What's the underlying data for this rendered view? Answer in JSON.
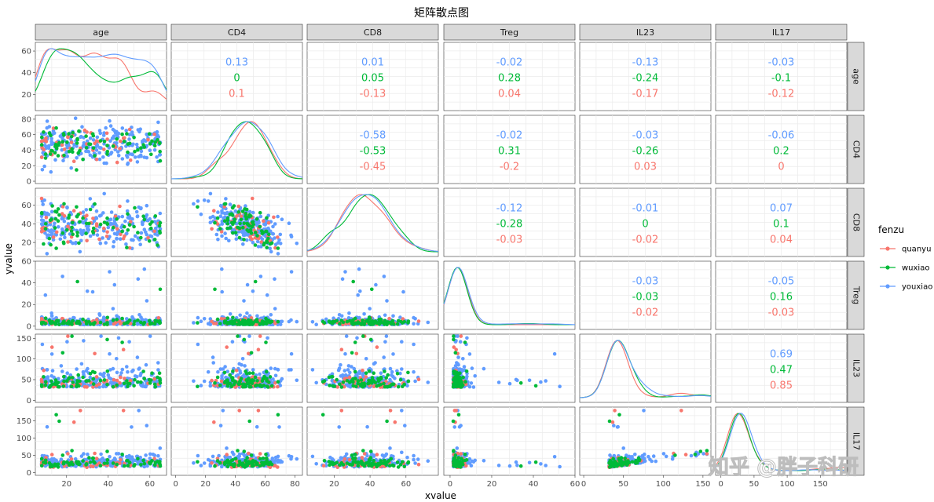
{
  "chart_data": {
    "type": "scatter",
    "title": "矩阵散点图",
    "xlabel": "xvalue",
    "ylabel": "yvalue",
    "variables": [
      "age",
      "CD4",
      "CD8",
      "Treg",
      "IL23",
      "IL17"
    ],
    "x_ticks": {
      "age": [
        "20",
        "40",
        "60"
      ],
      "CD4": [
        "0",
        "20",
        "40",
        "60",
        "80"
      ],
      "CD8": [
        "20",
        "40",
        "60"
      ],
      "Treg": [
        "0",
        "20",
        "40",
        "60"
      ],
      "IL23": [
        "0",
        "50",
        "100",
        "150"
      ],
      "IL17": [
        "0",
        "50",
        "100",
        "150"
      ]
    },
    "y_ticks": {
      "age": [
        "20",
        "40",
        "60"
      ],
      "CD4": [
        "0",
        "20",
        "40",
        "60",
        "80"
      ],
      "CD8": [
        "20",
        "40",
        "60"
      ],
      "Treg": [
        "0",
        "20",
        "40",
        "60"
      ],
      "IL23": [
        "0",
        "50",
        "100",
        "150"
      ],
      "IL17": [
        "0",
        "50",
        "100",
        "150"
      ]
    },
    "ranges": {
      "age": [
        5,
        68
      ],
      "CD4": [
        -3,
        85
      ],
      "CD8": [
        5,
        78
      ],
      "Treg": [
        -3,
        60
      ],
      "IL23": [
        -5,
        160
      ],
      "IL17": [
        -8,
        190
      ]
    },
    "legend": {
      "title": "fenzu",
      "position": "right",
      "entries": [
        {
          "name": "quanyu",
          "color": "#F8766D"
        },
        {
          "name": "wuxiao",
          "color": "#00BA38"
        },
        {
          "name": "youxiao",
          "color": "#619CFF"
        }
      ]
    },
    "correlations": [
      {
        "row": "age",
        "col": "CD4",
        "values": [
          "0.13",
          "0",
          "0.1"
        ]
      },
      {
        "row": "age",
        "col": "CD8",
        "values": [
          "0.01",
          "0.05",
          "-0.13"
        ]
      },
      {
        "row": "age",
        "col": "Treg",
        "values": [
          "-0.02",
          "0.28",
          "0.04"
        ]
      },
      {
        "row": "age",
        "col": "IL23",
        "values": [
          "-0.13",
          "-0.24",
          "-0.17"
        ]
      },
      {
        "row": "age",
        "col": "IL17",
        "values": [
          "-0.03",
          "-0.1",
          "-0.12"
        ]
      },
      {
        "row": "CD4",
        "col": "CD8",
        "values": [
          "-0.58",
          "-0.53",
          "-0.45"
        ]
      },
      {
        "row": "CD4",
        "col": "Treg",
        "values": [
          "-0.02",
          "0.31",
          "-0.2"
        ]
      },
      {
        "row": "CD4",
        "col": "IL23",
        "values": [
          "-0.03",
          "-0.26",
          "0.03"
        ]
      },
      {
        "row": "CD4",
        "col": "IL17",
        "values": [
          "-0.06",
          "0.2",
          "0"
        ]
      },
      {
        "row": "CD8",
        "col": "Treg",
        "values": [
          "-0.12",
          "-0.28",
          "-0.03"
        ]
      },
      {
        "row": "CD8",
        "col": "IL23",
        "values": [
          "-0.01",
          "0",
          "-0.02"
        ]
      },
      {
        "row": "CD8",
        "col": "IL17",
        "values": [
          "0.07",
          "0.1",
          "0.04"
        ]
      },
      {
        "row": "Treg",
        "col": "IL23",
        "values": [
          "-0.03",
          "-0.03",
          "-0.02"
        ]
      },
      {
        "row": "Treg",
        "col": "IL17",
        "values": [
          "-0.05",
          "0.16",
          "-0.03"
        ]
      },
      {
        "row": "IL23",
        "col": "IL17",
        "values": [
          "0.69",
          "0.47",
          "0.85"
        ]
      }
    ],
    "correlation_order": [
      "youxiao",
      "wuxiao",
      "quanyu"
    ],
    "grid": true,
    "watermark": "知乎 @胖子科研"
  }
}
